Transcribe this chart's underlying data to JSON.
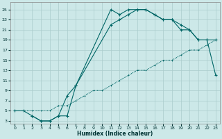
{
  "xlabel": "Humidex (Indice chaleur)",
  "bg_color": "#cce8e8",
  "grid_color": "#aacccc",
  "line_color": "#006666",
  "xlim": [
    -0.5,
    23.5
  ],
  "ylim": [
    2.5,
    26.5
  ],
  "xticks": [
    0,
    1,
    2,
    3,
    4,
    5,
    6,
    7,
    8,
    9,
    10,
    11,
    12,
    13,
    14,
    15,
    16,
    17,
    18,
    19,
    20,
    21,
    22,
    23
  ],
  "yticks": [
    3,
    5,
    7,
    9,
    11,
    13,
    15,
    17,
    19,
    21,
    23,
    25
  ],
  "curve1_x": [
    0,
    1,
    2,
    3,
    4,
    5,
    6,
    7,
    11,
    12,
    13,
    14,
    15,
    16,
    17,
    18,
    19,
    20,
    21,
    22,
    23
  ],
  "curve1_y": [
    5,
    5,
    4,
    3,
    3,
    4,
    4,
    10,
    25,
    24,
    25,
    25,
    25,
    24,
    23,
    23,
    22,
    21,
    19,
    19,
    19
  ],
  "curve2_x": [
    2,
    3,
    4,
    5,
    6,
    7,
    11,
    12,
    13,
    14,
    15,
    16,
    17,
    18,
    19,
    20,
    21,
    22,
    23
  ],
  "curve2_y": [
    4,
    3,
    3,
    4,
    8,
    10,
    22,
    23,
    24,
    25,
    25,
    24,
    23,
    23,
    21,
    21,
    19,
    19,
    12
  ],
  "curve3_x": [
    0,
    1,
    2,
    3,
    4,
    5,
    6,
    7,
    8,
    9,
    10,
    11,
    12,
    13,
    14,
    15,
    16,
    17,
    18,
    19,
    20,
    21,
    22,
    23
  ],
  "curve3_y": [
    5,
    5,
    5,
    5,
    5,
    6,
    6,
    7,
    8,
    9,
    9,
    10,
    11,
    12,
    13,
    13,
    14,
    15,
    15,
    16,
    17,
    17,
    18,
    19
  ]
}
